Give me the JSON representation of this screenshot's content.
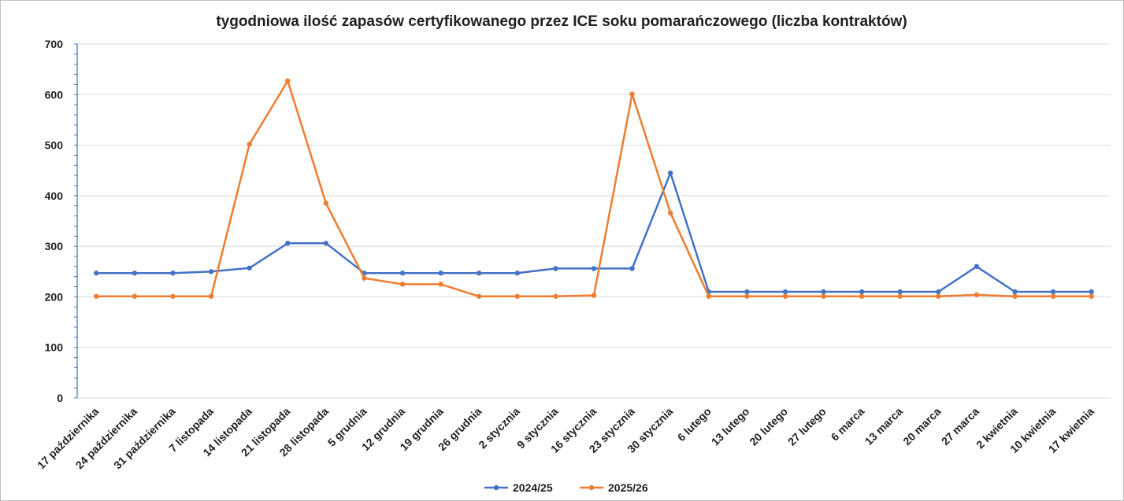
{
  "chart_data": {
    "type": "line",
    "title": "tygodniowa ilość zapasów certyfikowanego przez ICE soku pomarańczowego (liczba kontraktów)",
    "xlabel": "",
    "ylabel": "",
    "ylim": [
      0,
      700
    ],
    "yticks": [
      "0",
      "100",
      "200",
      "300",
      "400",
      "500",
      "600",
      "700"
    ],
    "grid": true,
    "legend_position": "bottom",
    "categories": [
      "17 października",
      "24 października",
      "31 października",
      "7 listopada",
      "14 listopada",
      "21 listopada",
      "28 listopada",
      "5 grudnia",
      "12 grudnia",
      "19 grudnia",
      "26 grudnia",
      "2 stycznia",
      "9 stycznia",
      "16 stycznia",
      "23 stycznia",
      "30 stycznia",
      "6 lutego",
      "13 lutego",
      "20 lutego",
      "27 lutego",
      "6 marca",
      "13 marca",
      "20 marca",
      "27 marca",
      "2 kwietnia",
      "10 kwietnia",
      "17 kwietnia"
    ],
    "series": [
      {
        "name": "2024/25",
        "color": "#4472c4",
        "values": [
          247,
          247,
          247,
          250,
          257,
          306,
          306,
          247,
          247,
          247,
          247,
          247,
          256,
          256,
          256,
          445,
          210,
          210,
          210,
          210,
          210,
          210,
          210,
          260,
          210,
          210,
          210
        ]
      },
      {
        "name": "2025/26",
        "color": "#ed7d31",
        "values": [
          201,
          201,
          201,
          201,
          502,
          627,
          385,
          237,
          225,
          225,
          201,
          201,
          201,
          203,
          601,
          366,
          201,
          201,
          201,
          201,
          201,
          201,
          201,
          204,
          201,
          201,
          201
        ]
      }
    ]
  }
}
